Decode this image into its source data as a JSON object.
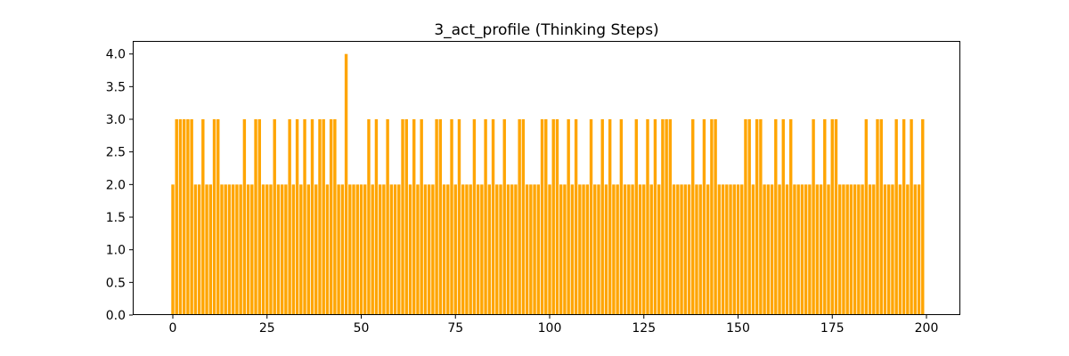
{
  "chart_data": {
    "type": "bar",
    "title": "3_act_profile (Thinking Steps)",
    "xlabel": "",
    "ylabel": "",
    "x_description": "index 0 to 199, bar per index",
    "values": [
      2,
      3,
      3,
      3,
      3,
      3,
      2,
      2,
      3,
      2,
      2,
      3,
      3,
      2,
      2,
      2,
      2,
      2,
      2,
      3,
      2,
      2,
      3,
      3,
      2,
      2,
      2,
      3,
      2,
      2,
      2,
      3,
      2,
      3,
      2,
      3,
      2,
      3,
      2,
      3,
      3,
      2,
      3,
      3,
      2,
      2,
      4,
      2,
      2,
      2,
      2,
      2,
      3,
      2,
      3,
      2,
      2,
      3,
      2,
      2,
      2,
      3,
      3,
      2,
      3,
      2,
      3,
      2,
      2,
      2,
      3,
      3,
      2,
      2,
      3,
      2,
      3,
      2,
      2,
      2,
      3,
      2,
      2,
      3,
      2,
      3,
      2,
      2,
      3,
      2,
      2,
      2,
      3,
      3,
      2,
      2,
      2,
      2,
      3,
      3,
      2,
      3,
      3,
      2,
      2,
      3,
      2,
      3,
      2,
      2,
      2,
      3,
      2,
      2,
      3,
      2,
      3,
      2,
      2,
      3,
      2,
      2,
      2,
      3,
      2,
      2,
      3,
      2,
      3,
      2,
      3,
      3,
      3,
      2,
      2,
      2,
      2,
      2,
      3,
      2,
      2,
      3,
      2,
      3,
      3,
      2,
      2,
      2,
      2,
      2,
      2,
      2,
      3,
      3,
      2,
      3,
      3,
      2,
      2,
      2,
      3,
      2,
      3,
      2,
      3,
      2,
      2,
      2,
      2,
      2,
      3,
      2,
      2,
      3,
      2,
      3,
      3,
      2,
      2,
      2,
      2,
      2,
      2,
      2,
      3,
      2,
      2,
      3,
      3,
      2,
      2,
      2,
      3,
      2,
      3,
      2,
      3,
      2,
      2,
      3
    ],
    "xticks": [
      0,
      25,
      50,
      75,
      100,
      125,
      150,
      175,
      200
    ],
    "ytick_labels": [
      "0.0",
      "0.5",
      "1.0",
      "1.5",
      "2.0",
      "2.5",
      "3.0",
      "3.5",
      "4.0"
    ],
    "ytick_values": [
      0,
      0.5,
      1,
      1.5,
      2,
      2.5,
      3,
      3.5,
      4
    ],
    "ylim": [
      0,
      4.2
    ],
    "xlim_px_note": "bars span plot area starting near x-tick 0",
    "bar_color": "#ffa500",
    "axis_color": "#000000",
    "background_color": "#ffffff",
    "grid": false,
    "legend": null
  }
}
